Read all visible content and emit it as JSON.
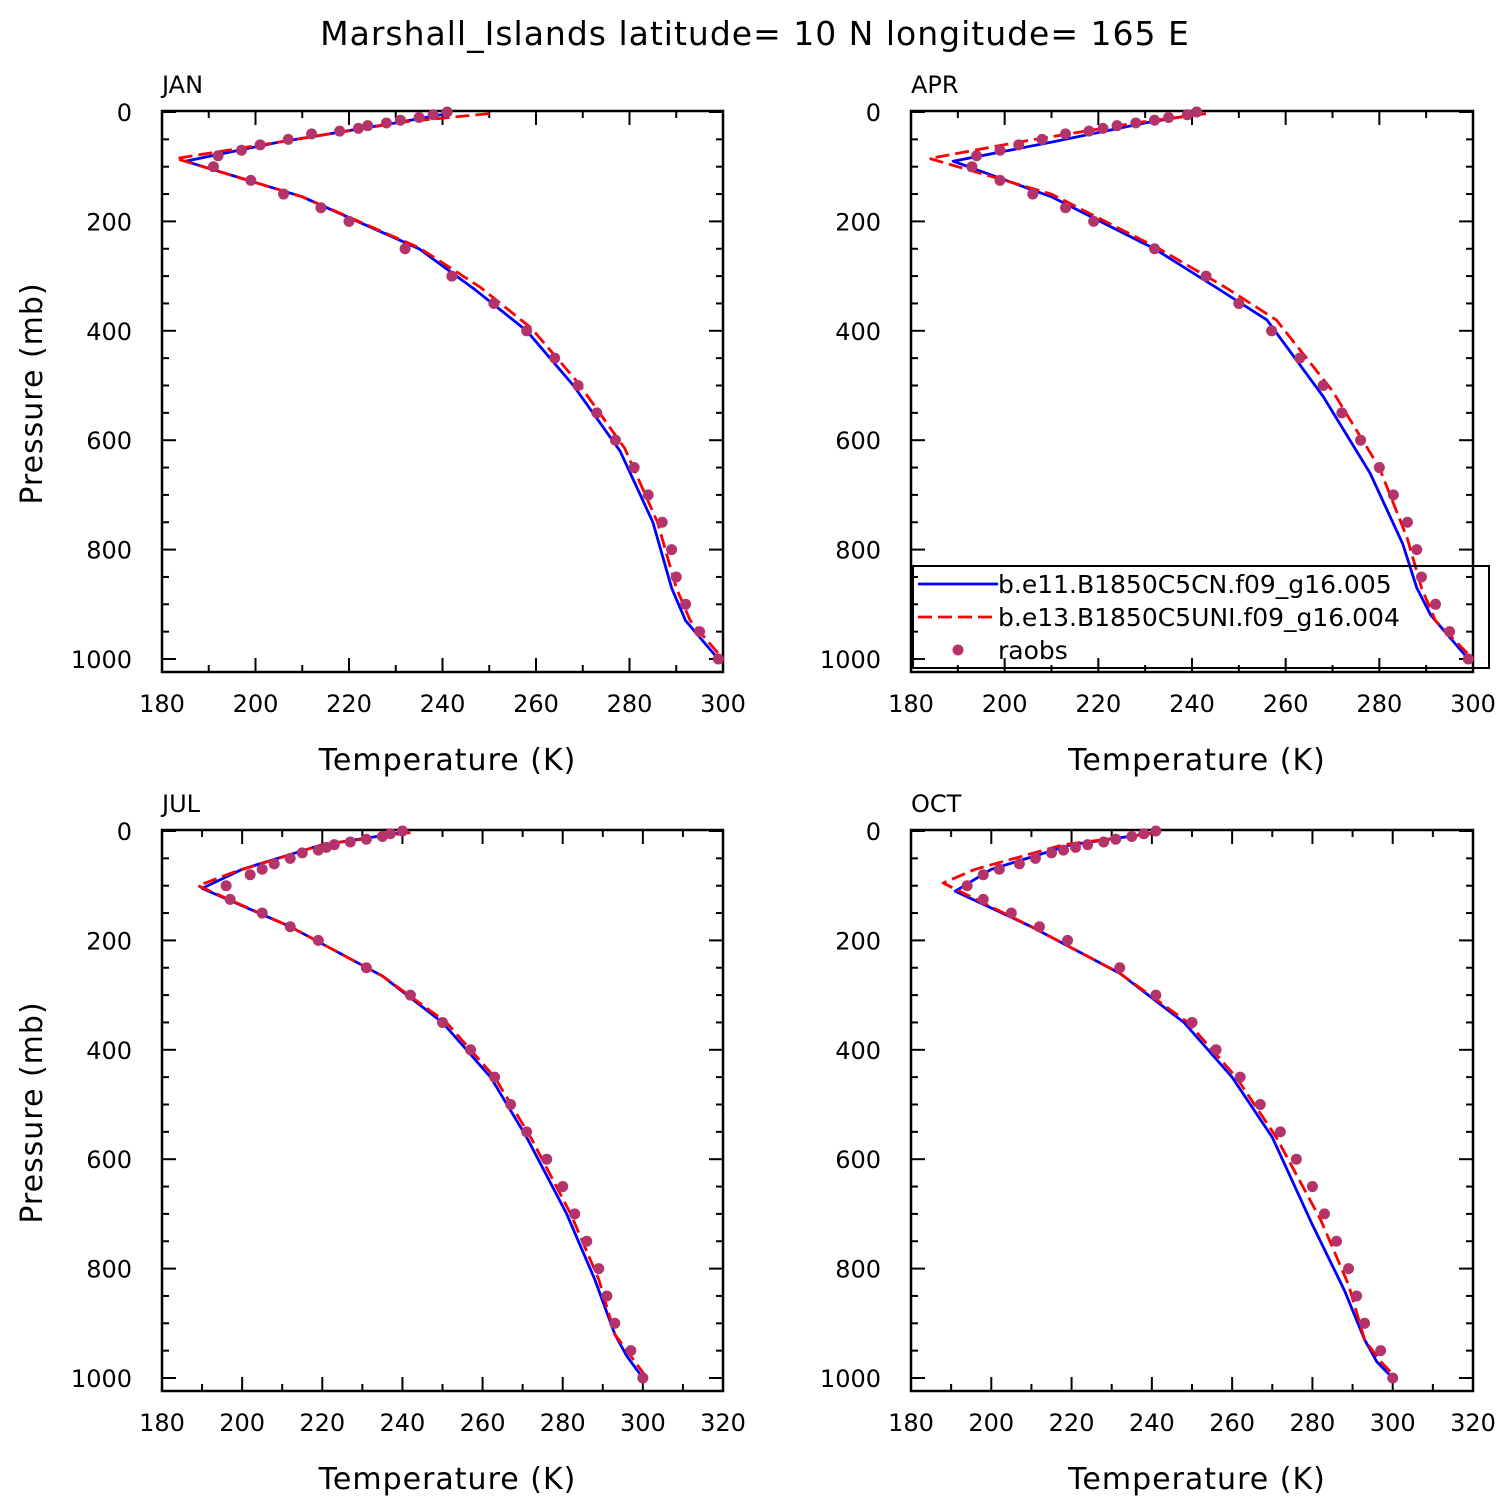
{
  "title": "Marshall_Islands   latitude= 10 N longitude= 165 E",
  "colors": {
    "series_1": "#0000ff",
    "series_2": "#ff0000",
    "series_3": "#b5336b"
  },
  "chart_data": [
    {
      "type": "line",
      "panel": "JAN",
      "xlabel": "Temperature (K)",
      "ylabel": "Pressure (mb)",
      "xlim": [
        180,
        300
      ],
      "ylim": [
        1000,
        0
      ],
      "y_reversed": true,
      "xticks": [
        180,
        200,
        220,
        240,
        260,
        280,
        300
      ],
      "yticks": [
        0,
        200,
        400,
        600,
        800,
        1000
      ],
      "legend": false,
      "series": [
        {
          "name": "b.e11.B1850C5CN.f09_g16.005",
          "style": "solid",
          "x": [
            241,
            230,
            205,
            185,
            210,
            235,
            247,
            258,
            268,
            278,
            285,
            289,
            292,
            299
          ],
          "y": [
            3,
            20,
            55,
            90,
            155,
            250,
            325,
            400,
            500,
            620,
            750,
            870,
            930,
            1000
          ]
        },
        {
          "name": "b.e13.B1850C5UNI.f09_g16.004",
          "style": "dashed",
          "x": [
            250,
            232,
            205,
            183,
            210,
            235,
            248,
            259,
            269,
            279,
            286,
            290,
            293,
            300
          ],
          "y": [
            3,
            18,
            55,
            85,
            155,
            248,
            320,
            395,
            495,
            615,
            750,
            870,
            930,
            1000
          ]
        },
        {
          "name": "raobs",
          "style": "markers",
          "x": [
            241,
            238,
            235,
            231,
            228,
            224,
            222,
            218,
            212,
            207,
            201,
            197,
            192,
            191,
            199,
            206,
            214,
            220,
            232,
            242,
            251,
            258,
            264,
            269,
            273,
            277,
            281,
            284,
            287,
            289,
            290,
            292,
            295,
            299
          ],
          "y": [
            0,
            5,
            10,
            15,
            20,
            25,
            30,
            35,
            40,
            50,
            60,
            70,
            80,
            100,
            125,
            150,
            175,
            200,
            250,
            300,
            350,
            400,
            450,
            500,
            550,
            600,
            650,
            700,
            750,
            800,
            850,
            900,
            950,
            1000
          ]
        }
      ]
    },
    {
      "type": "line",
      "panel": "APR",
      "xlabel": "Temperature (K)",
      "ylabel": "",
      "xlim": [
        180,
        300
      ],
      "ylim": [
        1000,
        0
      ],
      "y_reversed": true,
      "xticks": [
        180,
        200,
        220,
        240,
        260,
        280,
        300
      ],
      "yticks": [
        0,
        200,
        400,
        600,
        800,
        1000
      ],
      "legend": true,
      "legend_position": "bottom-right",
      "series": [
        {
          "name": "b.e11.B1850C5CN.f09_g16.005",
          "style": "solid",
          "x": [
            242,
            230,
            210,
            189,
            210,
            232,
            245,
            256,
            268,
            278,
            285,
            288,
            291,
            299
          ],
          "y": [
            3,
            20,
            55,
            90,
            155,
            250,
            320,
            380,
            520,
            660,
            790,
            870,
            920,
            1000
          ]
        },
        {
          "name": "b.e13.B1850C5UNI.f09_g16.004",
          "style": "dashed",
          "x": [
            243,
            228,
            203,
            184,
            210,
            233,
            247,
            258,
            270,
            280,
            286,
            289,
            292,
            300
          ],
          "y": [
            3,
            20,
            55,
            85,
            150,
            250,
            320,
            380,
            510,
            650,
            780,
            870,
            930,
            1000
          ]
        },
        {
          "name": "raobs",
          "style": "markers",
          "x": [
            241,
            239,
            235,
            232,
            228,
            224,
            221,
            218,
            213,
            208,
            203,
            199,
            194,
            193,
            199,
            206,
            213,
            219,
            232,
            243,
            250,
            257,
            263,
            268,
            272,
            276,
            280,
            283,
            286,
            288,
            289,
            292,
            295,
            299
          ],
          "y": [
            0,
            5,
            10,
            15,
            20,
            25,
            30,
            35,
            40,
            50,
            60,
            70,
            80,
            100,
            125,
            150,
            175,
            200,
            250,
            300,
            350,
            400,
            450,
            500,
            550,
            600,
            650,
            700,
            750,
            800,
            850,
            900,
            950,
            1000
          ]
        }
      ]
    },
    {
      "type": "line",
      "panel": "JUL",
      "xlabel": "Temperature (K)",
      "ylabel": "Pressure (mb)",
      "xlim": [
        180,
        320
      ],
      "ylim": [
        1000,
        0
      ],
      "y_reversed": true,
      "xticks": [
        180,
        200,
        220,
        240,
        260,
        280,
        300,
        320
      ],
      "yticks": [
        0,
        200,
        400,
        600,
        800,
        1000
      ],
      "legend": false,
      "series": [
        {
          "name": "b.e11.B1850C5CN.f09_g16.005",
          "style": "solid",
          "x": [
            240,
            220,
            200,
            190,
            212,
            235,
            250,
            262,
            271,
            281,
            288,
            293,
            296,
            300
          ],
          "y": [
            3,
            25,
            70,
            105,
            175,
            265,
            350,
            450,
            560,
            700,
            820,
            920,
            960,
            1000
          ]
        },
        {
          "name": "b.e13.B1850C5UNI.f09_g16.004",
          "style": "dashed",
          "x": [
            242,
            220,
            198,
            189,
            212,
            235,
            251,
            263,
            272,
            282,
            289,
            293,
            297,
            301
          ],
          "y": [
            3,
            25,
            75,
            100,
            175,
            265,
            350,
            450,
            560,
            700,
            820,
            920,
            960,
            1000
          ]
        },
        {
          "name": "raobs",
          "style": "markers",
          "x": [
            240,
            237,
            235,
            231,
            227,
            223,
            221,
            219,
            215,
            212,
            208,
            205,
            202,
            196,
            197,
            205,
            212,
            219,
            231,
            242,
            250,
            257,
            263,
            267,
            271,
            276,
            280,
            283,
            286,
            289,
            291,
            293,
            297,
            300
          ],
          "y": [
            0,
            5,
            10,
            15,
            20,
            25,
            30,
            35,
            40,
            50,
            60,
            70,
            80,
            100,
            125,
            150,
            175,
            200,
            250,
            300,
            350,
            400,
            450,
            500,
            550,
            600,
            650,
            700,
            750,
            800,
            850,
            900,
            950,
            1000
          ]
        }
      ]
    },
    {
      "type": "line",
      "panel": "OCT",
      "xlabel": "Temperature (K)",
      "ylabel": "",
      "xlim": [
        180,
        320
      ],
      "ylim": [
        1000,
        0
      ],
      "y_reversed": true,
      "xticks": [
        180,
        200,
        220,
        240,
        260,
        280,
        300,
        320
      ],
      "yticks": [
        0,
        200,
        400,
        600,
        800,
        1000
      ],
      "legend": false,
      "series": [
        {
          "name": "b.e11.B1850C5CN.f09_g16.005",
          "style": "solid",
          "x": [
            241,
            220,
            200,
            191,
            210,
            232,
            248,
            260,
            270,
            280,
            288,
            293,
            296,
            300
          ],
          "y": [
            3,
            25,
            70,
            110,
            175,
            260,
            350,
            450,
            560,
            720,
            840,
            930,
            970,
            1000
          ]
        },
        {
          "name": "b.e13.B1850C5UNI.f09_g16.004",
          "style": "dashed",
          "x": [
            242,
            218,
            196,
            188,
            210,
            232,
            249,
            261,
            271,
            282,
            289,
            293,
            297,
            301
          ],
          "y": [
            3,
            25,
            70,
            95,
            175,
            260,
            350,
            450,
            560,
            710,
            830,
            930,
            970,
            1000
          ]
        },
        {
          "name": "raobs",
          "style": "markers",
          "x": [
            241,
            238,
            235,
            231,
            228,
            224,
            221,
            218,
            215,
            211,
            207,
            202,
            198,
            194,
            198,
            205,
            212,
            219,
            232,
            241,
            250,
            256,
            262,
            267,
            272,
            276,
            280,
            283,
            286,
            289,
            291,
            293,
            297,
            300
          ],
          "y": [
            0,
            5,
            10,
            15,
            20,
            25,
            30,
            35,
            40,
            50,
            60,
            70,
            80,
            100,
            125,
            150,
            175,
            200,
            250,
            300,
            350,
            400,
            450,
            500,
            550,
            600,
            650,
            700,
            750,
            800,
            850,
            900,
            950,
            1000
          ]
        }
      ]
    }
  ]
}
